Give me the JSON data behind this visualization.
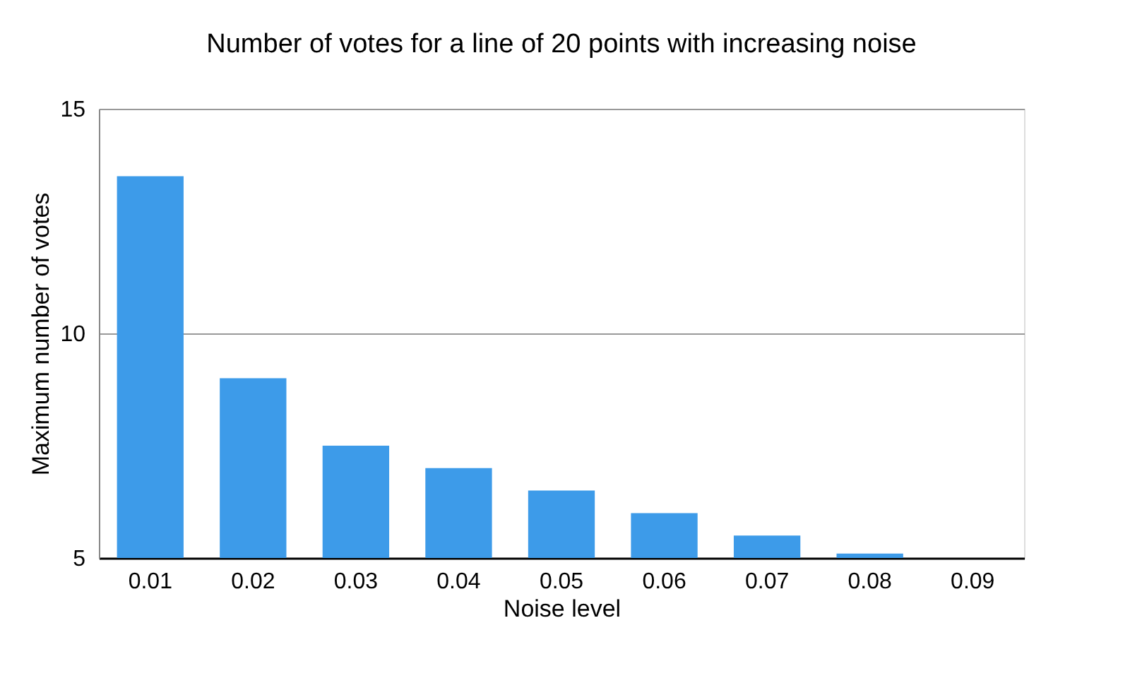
{
  "chart_data": {
    "type": "bar",
    "title": "Number of votes for a line of 20 points with increasing noise",
    "xlabel": "Noise level",
    "ylabel": "Maximum number of votes",
    "categories": [
      "0.01",
      "0.02",
      "0.03",
      "0.04",
      "0.05",
      "0.06",
      "0.07",
      "0.08",
      "0.09"
    ],
    "values": [
      13.5,
      9.0,
      7.5,
      7.0,
      6.5,
      6.0,
      5.5,
      5.1,
      5.0
    ],
    "color": "#3d9be9",
    "ylim": [
      5,
      15
    ],
    "yticks": [
      5,
      10,
      15
    ],
    "grid": "y"
  }
}
